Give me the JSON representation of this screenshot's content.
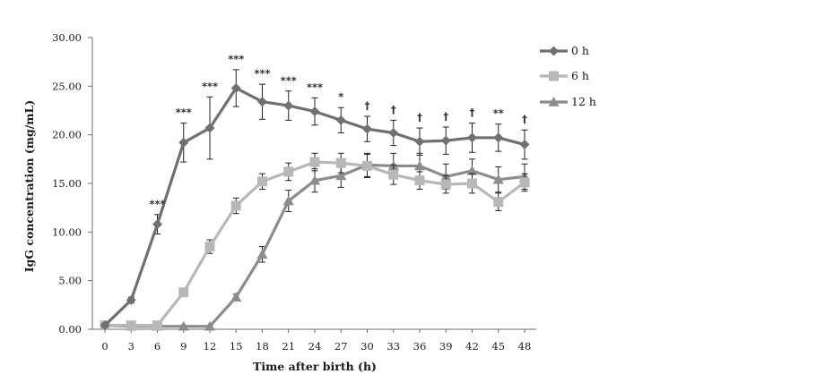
{
  "chart_data": {
    "type": "line",
    "title": "",
    "xlabel": "Time after birth (h)",
    "ylabel": "IgG concentration (mg/mL)",
    "x": [
      0,
      3,
      6,
      9,
      12,
      15,
      18,
      21,
      24,
      27,
      30,
      33,
      36,
      39,
      42,
      45,
      48
    ],
    "x_tick_labels": [
      "0",
      "3",
      "6",
      "9",
      "12",
      "15",
      "18",
      "21",
      "24",
      "27",
      "30",
      "33",
      "36",
      "39",
      "42",
      "45",
      "48"
    ],
    "y_tick_labels": [
      "0.00",
      "5.00",
      "10.00",
      "15.00",
      "20.00",
      "25.00",
      "30.00"
    ],
    "ylim": [
      0,
      30
    ],
    "grid": false,
    "legend_position": "right",
    "series": [
      {
        "name": "0 h",
        "marker": "diamond",
        "color": "#707070",
        "values": [
          0.4,
          3.0,
          10.8,
          19.2,
          20.7,
          24.8,
          23.4,
          23.0,
          22.4,
          21.5,
          20.6,
          20.2,
          19.3,
          19.4,
          19.7,
          19.7,
          19.0
        ],
        "errors": [
          0.2,
          0.3,
          1.0,
          2.0,
          3.2,
          1.9,
          1.8,
          1.5,
          1.4,
          1.3,
          1.3,
          1.3,
          1.4,
          1.4,
          1.5,
          1.4,
          1.5
        ]
      },
      {
        "name": "6 h",
        "marker": "square",
        "color": "#b8b8b8",
        "values": [
          0.4,
          0.4,
          0.4,
          3.8,
          8.5,
          12.7,
          15.2,
          16.2,
          17.2,
          17.1,
          16.8,
          15.9,
          15.3,
          14.9,
          15.0,
          13.1,
          15.1
        ],
        "errors": [
          0.1,
          0.1,
          0.1,
          0.3,
          0.7,
          0.8,
          0.8,
          0.9,
          0.9,
          1.0,
          1.2,
          1.0,
          0.9,
          0.9,
          1.0,
          0.9,
          0.9
        ]
      },
      {
        "name": "12 h",
        "marker": "triangle",
        "color": "#8c8c8c",
        "values": [
          0.4,
          0.3,
          0.3,
          0.3,
          0.3,
          3.3,
          7.7,
          13.2,
          15.3,
          15.8,
          16.9,
          16.8,
          16.8,
          15.7,
          16.3,
          15.4,
          15.7
        ],
        "errors": [
          0.1,
          0.1,
          0.1,
          0.1,
          0.1,
          0.3,
          0.8,
          1.1,
          1.2,
          1.2,
          1.2,
          1.3,
          1.3,
          1.3,
          1.2,
          1.3,
          1.3
        ]
      }
    ],
    "annotations": [
      {
        "x": 6,
        "text": "***"
      },
      {
        "x": 9,
        "text": "***"
      },
      {
        "x": 12,
        "text": "***"
      },
      {
        "x": 15,
        "text": "***"
      },
      {
        "x": 18,
        "text": "***"
      },
      {
        "x": 21,
        "text": "***"
      },
      {
        "x": 24,
        "text": "***"
      },
      {
        "x": 27,
        "text": "*"
      },
      {
        "x": 30,
        "text": "†"
      },
      {
        "x": 33,
        "text": "†"
      },
      {
        "x": 36,
        "text": "†"
      },
      {
        "x": 39,
        "text": "†"
      },
      {
        "x": 42,
        "text": "†"
      },
      {
        "x": 45,
        "text": "**"
      },
      {
        "x": 48,
        "text": "†"
      }
    ]
  }
}
